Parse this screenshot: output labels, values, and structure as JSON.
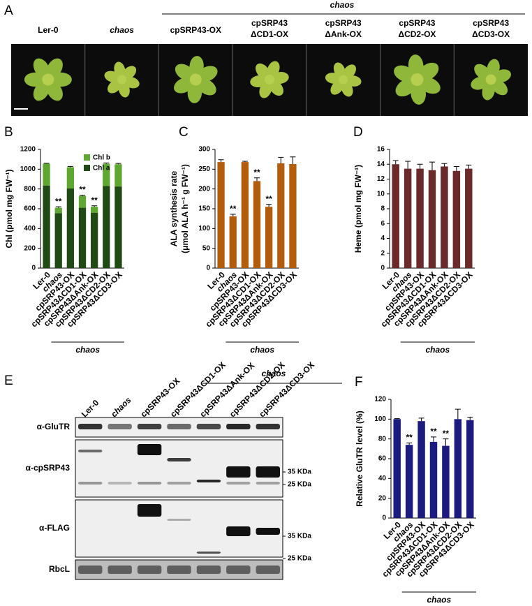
{
  "panels": {
    "A": {
      "label": "A",
      "group_label": "chaos",
      "columns": [
        [
          "Ler-0"
        ],
        [
          "chaos"
        ],
        [
          "cpSRP43-OX"
        ],
        [
          "cpSRP43",
          "ΔCD1-OX"
        ],
        [
          "cpSRP43",
          "ΔAnk-OX"
        ],
        [
          "cpSRP43",
          "ΔCD2-OX"
        ],
        [
          "cpSRP43",
          "ΔCD3-OX"
        ]
      ]
    },
    "E": {
      "label": "E",
      "group_label": "chaos",
      "lanes": [
        "Ler-0",
        "chaos",
        "cpSRP43-OX",
        "cpSRP43ΔCD1-OX",
        "cpSRP43ΔAnk-OX",
        "cpSRP43ΔCD2-OX",
        "cpSRP43ΔCD3-OX"
      ],
      "rows": [
        "α-GluTR",
        "α-cpSRP43",
        "α-FLAG",
        "RbcL"
      ],
      "cpSRP43_markers": [
        "35 KDa",
        "25 KDa"
      ],
      "flag_markers": [
        "35 KDa",
        "25 KDa"
      ]
    }
  },
  "chart_data": [
    {
      "type": "stacked_bar",
      "panel_label": "B",
      "ylabel": "Chl (pmol mg FW⁻¹)",
      "categories": [
        "Ler-0",
        "chaos",
        "cpSRP43-OX",
        "cpSRP43ΔCD1-OX",
        "cpSRP43ΔAnk-OX",
        "cpSRP43ΔCD2-OX",
        "cpSRP43ΔCD3-OX"
      ],
      "series": [
        {
          "name": "Chl a",
          "color": "#1f4a14",
          "values": [
            835,
            555,
            805,
            610,
            560,
            830,
            825
          ],
          "errors": [
            15,
            35,
            25,
            15,
            30,
            15,
            15
          ]
        },
        {
          "name": "Chl b",
          "color": "#5ea832",
          "values": [
            220,
            55,
            215,
            120,
            60,
            225,
            225
          ],
          "errors": [
            5,
            10,
            8,
            8,
            10,
            8,
            8
          ]
        }
      ],
      "significance": [
        null,
        "**",
        null,
        "**",
        "**",
        null,
        null
      ],
      "group_label": "chaos",
      "ylim": [
        0,
        1200
      ],
      "yticks": [
        0,
        200,
        400,
        600,
        800,
        1000,
        1200
      ]
    },
    {
      "type": "bar",
      "panel_label": "C",
      "ylabel": [
        "ALA synthesis rate",
        "(μmol ALA h⁻¹ g FW⁻¹)"
      ],
      "categories": [
        "Ler-0",
        "chaos",
        "cpSRP43-OX",
        "cpSRP43ΔCD1-OX",
        "cpSRP43ΔAnk-OX",
        "cpSRP43ΔCD2-OX",
        "cpSRP43ΔCD3-OX"
      ],
      "values": [
        268,
        131,
        268,
        220,
        155,
        265,
        263
      ],
      "errors": [
        6,
        5,
        2,
        8,
        6,
        15,
        18
      ],
      "color": "#b35c0c",
      "significance": [
        null,
        "**",
        null,
        "**",
        "**",
        null,
        null
      ],
      "group_label": "chaos",
      "ylim": [
        0,
        300
      ],
      "yticks": [
        0,
        50,
        100,
        150,
        200,
        250,
        300
      ]
    },
    {
      "type": "bar",
      "panel_label": "D",
      "ylabel": "Heme (pmol mg FW⁻¹)",
      "categories": [
        "Ler-0",
        "chaos",
        "cpSRP43-OX",
        "cpSRP43ΔCD1-OX",
        "cpSRP43ΔAnk-OX",
        "cpSRP43ΔCD2-OX",
        "cpSRP43ΔCD3-OX"
      ],
      "values": [
        14.0,
        13.4,
        13.4,
        13.2,
        13.7,
        13.1,
        13.4
      ],
      "errors": [
        0.5,
        1.0,
        0.6,
        1.1,
        0.4,
        0.6,
        0.5
      ],
      "color": "#6b2a2a",
      "group_label": "chaos",
      "ylim": [
        0,
        16
      ],
      "yticks": [
        0,
        2,
        4,
        6,
        8,
        10,
        12,
        14,
        16
      ]
    },
    {
      "type": "bar",
      "panel_label": "F",
      "ylabel": "Relative GluTR level (%)",
      "categories": [
        "Ler-0",
        "chaos",
        "cpSRP43-OX",
        "cpSRP43ΔCD1-OX",
        "cpSRP43ΔAnk-OX",
        "cpSRP43ΔCD2-OX",
        "cpSRP43ΔCD3-OX"
      ],
      "values": [
        100,
        74,
        98,
        77,
        73,
        100,
        99
      ],
      "errors": [
        0.5,
        2,
        3,
        5,
        7,
        10,
        3
      ],
      "color": "#1c1c80",
      "significance": [
        null,
        "**",
        null,
        "**",
        "**",
        null,
        null
      ],
      "group_label": "chaos",
      "ylim": [
        0,
        120
      ],
      "yticks": [
        0,
        20,
        40,
        60,
        80,
        100,
        120
      ]
    }
  ]
}
